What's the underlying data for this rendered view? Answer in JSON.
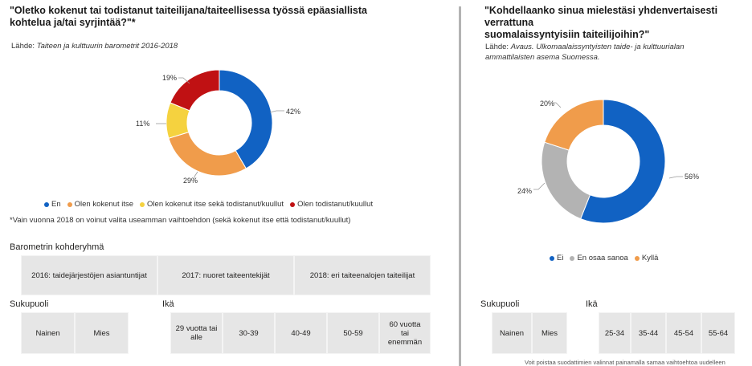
{
  "left": {
    "title_line1": "\"Oletko kokenut tai todistanut taiteilijana/taiteellisessa työssä epäasiallista",
    "title_line2": "kohtelua ja/tai syrjintää?\"*",
    "source_prefix": "Lähde:",
    "source_text": "Taiteen ja kulttuurin barometrit 2016-2018",
    "chart_data": {
      "type": "pie",
      "categories": [
        "En",
        "Olen kokenut itse",
        "Olen kokenut itse sekä todistanut/kuullut",
        "Olen todistanut/kuullut"
      ],
      "values": [
        42,
        29,
        11,
        19
      ],
      "labels": [
        "42%",
        "29%",
        "11%",
        "19%"
      ],
      "colors": [
        "#1162c3",
        "#f09c4b",
        "#f5d23f",
        "#c01113"
      ],
      "donut": true
    },
    "legend": [
      "En",
      "Olen kokenut itse",
      "Olen kokenut itse sekä todistanut/kuullut",
      "Olen todistanut/kuullut"
    ],
    "note": "*Vain vuonna 2018 on voinut valita useamman vaihtoehdon (sekä kokenut itse että todistanut/kuullut)",
    "target_group_label": "Barometrin kohderyhmä",
    "target_groups": [
      "2016: taidejärjestöjen asiantuntijat",
      "2017: nuoret taiteentekijät",
      "2018: eri taiteenalojen taiteilijat"
    ],
    "gender_label": "Sukupuoli",
    "genders": [
      "Nainen",
      "Mies"
    ],
    "age_label": "Ikä",
    "ages": [
      "29 vuotta tai alle",
      "30-39",
      "40-49",
      "50-59",
      "60 vuotta tai enemmän"
    ]
  },
  "right": {
    "title_line1": "\"Kohdellaanko sinua mielestäsi yhdenvertaisesti verrattuna",
    "title_line2": "suomalaissyntyisiin taiteilijoihin?\"",
    "source_prefix": "Lähde:",
    "source_text_line1": "Avaus. Ulkomaalaissyntyisten taide- ja kulttuurialan",
    "source_text_line2": "ammattilaisten asema Suomessa.",
    "chart_data": {
      "type": "pie",
      "categories": [
        "Ei",
        "En osaa sanoa",
        "Kyllä"
      ],
      "values": [
        56,
        24,
        20
      ],
      "labels": [
        "56%",
        "24%",
        "20%"
      ],
      "colors": [
        "#1162c3",
        "#b3b3b3",
        "#f09c4b"
      ],
      "donut": true
    },
    "legend": [
      "Ei",
      "En osaa sanoa",
      "Kyllä"
    ],
    "gender_label": "Sukupuoli",
    "genders": [
      "Nainen",
      "Mies"
    ],
    "age_label": "Ikä",
    "ages": [
      "25-34",
      "35-44",
      "45-54",
      "55-64"
    ],
    "footnote": "Voit poistaa suodattimien valinnat painamalla samaa vaihtoehtoa uudelleen"
  }
}
